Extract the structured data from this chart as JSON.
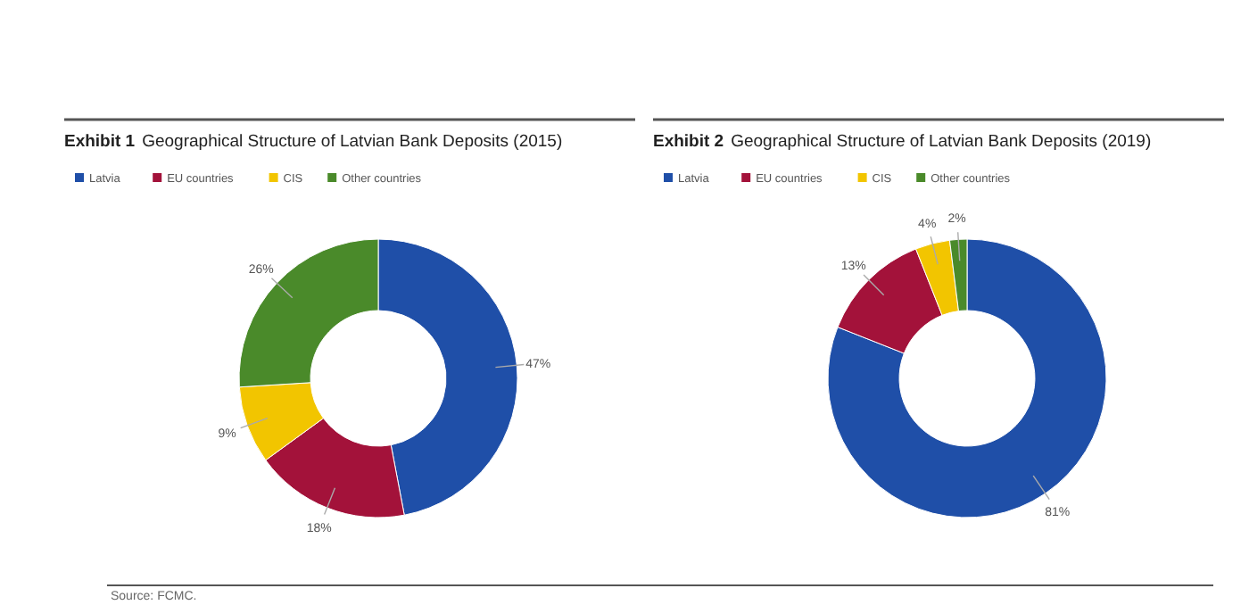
{
  "chart_data": [
    {
      "type": "donut",
      "title": "Exhibit 1 Geographical Structure of Latvian Bank Deposits (2015)",
      "categories": [
        "Latvia",
        "EU countries",
        "CIS",
        "Other countries"
      ],
      "values": [
        47,
        18,
        9,
        26
      ],
      "colors": [
        "#1f4fa8",
        "#a3123a",
        "#f2c500",
        "#4a8a2a"
      ],
      "value_labels": [
        "47%",
        "18%",
        "9%",
        "26%"
      ],
      "legend": "top left",
      "annotations": [
        "Source: FCMC."
      ]
    },
    {
      "type": "donut",
      "title": "Exhibit 2 Geographical Structure of Latvian Bank Deposits (2019)",
      "categories": [
        "Latvia",
        "EU countries",
        "CIS",
        "Other countries"
      ],
      "values": [
        81,
        13,
        4,
        2
      ],
      "colors": [
        "#1f4fa8",
        "#a3123a",
        "#f2c500",
        "#4a8a2a"
      ],
      "value_labels": [
        "81%",
        "13%",
        "4%",
        "2%"
      ],
      "legend": "top left"
    }
  ]
}
